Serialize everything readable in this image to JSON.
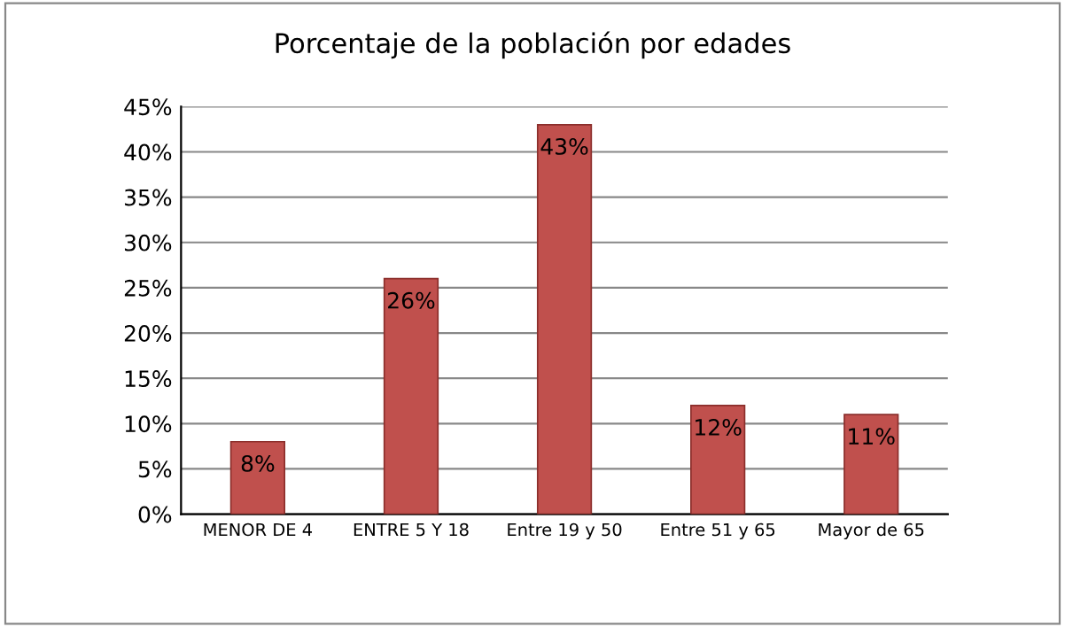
{
  "chart_data": {
    "type": "bar",
    "title": "Porcentaje de la población por edades",
    "categories": [
      "MENOR DE 4",
      "ENTRE 5 Y 18",
      "Entre 19 y 50",
      "Entre 51 y 65",
      "Mayor de 65"
    ],
    "values": [
      8,
      26,
      43,
      12,
      11
    ],
    "value_labels": [
      "8%",
      "26%",
      "43%",
      "12%",
      "11%"
    ],
    "color": "#c0504d",
    "ylim": [
      0,
      45
    ],
    "yticks": [
      {
        "value": 0,
        "label": "0%"
      },
      {
        "value": 5,
        "label": "5%"
      },
      {
        "value": 10,
        "label": "10%"
      },
      {
        "value": 15,
        "label": "15%"
      },
      {
        "value": 20,
        "label": "20%"
      },
      {
        "value": 25,
        "label": "25%"
      },
      {
        "value": 30,
        "label": "30%"
      },
      {
        "value": 35,
        "label": "35%"
      },
      {
        "value": 40,
        "label": "40%"
      },
      {
        "value": 45,
        "label": "45%"
      }
    ],
    "grid": "y"
  }
}
